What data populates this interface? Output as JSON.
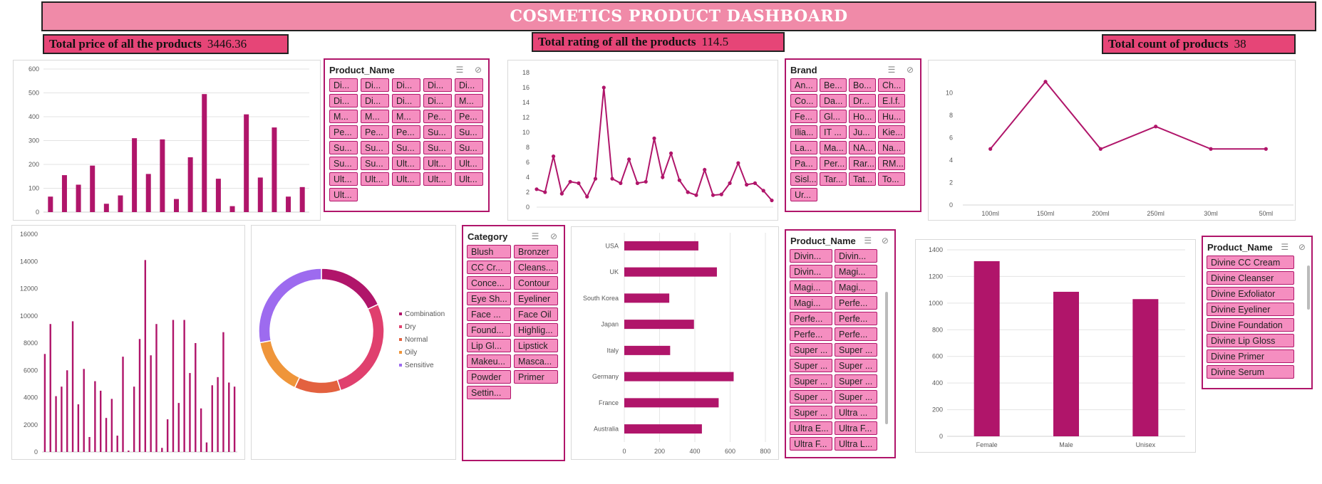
{
  "title": "COSMETICS PRODUCT DASHBOARD",
  "kpis": {
    "price": {
      "label": "Total price of all the products",
      "value": "3446.36"
    },
    "rating": {
      "label": "Total rating of all the products",
      "value": "114.5"
    },
    "count": {
      "label": "Total count of products",
      "value": "38"
    }
  },
  "colors": {
    "accent": "#b0156a",
    "title_bg": "#f08aa8",
    "kpi_bg": "#e64577",
    "slicer_btn": "#f58ec0"
  },
  "slicers": {
    "product_name_1": {
      "title": "Product_Name",
      "items": [
        "Di...",
        "Di...",
        "Di...",
        "Di...",
        "Di...",
        "Di...",
        "Di...",
        "Di...",
        "Di...",
        "M...",
        "M...",
        "M...",
        "M...",
        "Pe...",
        "Pe...",
        "Pe...",
        "Pe...",
        "Pe...",
        "Su...",
        "Su...",
        "Su...",
        "Su...",
        "Su...",
        "Su...",
        "Su...",
        "Su...",
        "Su...",
        "Ult...",
        "Ult...",
        "Ult...",
        "Ult...",
        "Ult...",
        "Ult...",
        "Ult...",
        "Ult...",
        "Ult..."
      ]
    },
    "brand": {
      "title": "Brand",
      "items": [
        "An...",
        "Be...",
        "Bo...",
        "Ch...",
        "Co...",
        "Da...",
        "Dr...",
        "E.l.f.",
        "Fe...",
        "Gl...",
        "Ho...",
        "Hu...",
        "Ilia...",
        "IT ...",
        "Ju...",
        "Kie...",
        "La...",
        "Ma...",
        "NA...",
        "Na...",
        "Pa...",
        "Per...",
        "Rar...",
        "RM...",
        "Sisl...",
        "Tar...",
        "Tat...",
        "To...",
        "Ur..."
      ]
    },
    "category": {
      "title": "Category",
      "items": [
        "Blush",
        "Bronzer",
        "CC Cr...",
        "Cleans...",
        "Conce...",
        "Contour",
        "Eye Sh...",
        "Eyeliner",
        "Face ...",
        "Face Oil",
        "Found...",
        "Highlig...",
        "Lip Gl...",
        "Lipstick",
        "Makeu...",
        "Masca...",
        "Powder",
        "Primer",
        "Settin..."
      ]
    },
    "product_name_2": {
      "title": "Product_Name",
      "items": [
        "Divin...",
        "Divin...",
        "Divin...",
        "Magi...",
        "Magi...",
        "Magi...",
        "Magi...",
        "Perfe...",
        "Perfe...",
        "Perfe...",
        "Perfe...",
        "Perfe...",
        "Super ...",
        "Super ...",
        "Super ...",
        "Super ...",
        "Super ...",
        "Super ...",
        "Super ...",
        "Super ...",
        "Super ...",
        "Ultra ...",
        "Ultra E...",
        "Ultra F...",
        "Ultra F...",
        "Ultra L..."
      ]
    },
    "product_name_3": {
      "title": "Product_Name",
      "items": [
        "Divine CC Cream",
        "Divine Cleanser",
        "Divine Exfoliator",
        "Divine Eyeliner",
        "Divine Foundation",
        "Divine Lip Gloss",
        "Divine Primer",
        "Divine Serum"
      ]
    }
  },
  "chart_data": [
    {
      "id": "price_bars",
      "type": "bar",
      "ylim": [
        0,
        600
      ],
      "yticks": [
        "0",
        "100",
        "200",
        "300",
        "400",
        "500",
        "600"
      ],
      "values": [
        65,
        155,
        115,
        195,
        35,
        70,
        310,
        160,
        305,
        55,
        230,
        495,
        140,
        25,
        410,
        145,
        355,
        65,
        105
      ]
    },
    {
      "id": "rating_line",
      "type": "line",
      "ylim": [
        0,
        18
      ],
      "yticks": [
        "0",
        "2",
        "4",
        "6",
        "8",
        "10",
        "12",
        "14",
        "16",
        "18"
      ],
      "values": [
        2.4,
        2.0,
        6.8,
        1.8,
        3.4,
        3.2,
        1.4,
        3.8,
        16.0,
        3.8,
        3.2,
        6.4,
        3.2,
        3.4,
        9.2,
        4.0,
        7.2,
        3.6,
        2.0,
        1.6,
        5.0,
        1.6,
        1.7,
        3.2,
        5.9,
        3.0,
        3.2,
        2.2,
        0.9
      ]
    },
    {
      "id": "count_by_size",
      "type": "line",
      "categories": [
        "100ml",
        "150ml",
        "200ml",
        "250ml",
        "30ml",
        "50ml"
      ],
      "values": [
        5,
        11,
        5,
        7,
        5,
        5
      ],
      "ylim": [
        0,
        12
      ],
      "yticks": [
        "0",
        "2",
        "4",
        "6",
        "8",
        "10"
      ]
    },
    {
      "id": "sum_bars",
      "type": "bar",
      "ylim": [
        0,
        16000
      ],
      "yticks": [
        "0",
        "2000",
        "4000",
        "6000",
        "8000",
        "10000",
        "12000",
        "14000",
        "16000"
      ],
      "values": [
        7200,
        9400,
        4100,
        4800,
        6000,
        9600,
        3500,
        6100,
        1100,
        5200,
        4500,
        2500,
        3900,
        1200,
        7000,
        100,
        4800,
        8300,
        14100,
        7100,
        9400,
        300,
        2400,
        9700,
        3600,
        9700,
        5800,
        8000,
        3200,
        700,
        4900,
        5500,
        8800,
        5100,
        4800
      ]
    },
    {
      "id": "skin_type_donut",
      "type": "pie",
      "categories": [
        "Combination",
        "Dry",
        "Normal",
        "Oily",
        "Sensitive"
      ],
      "values": [
        18,
        27,
        12,
        15,
        28
      ],
      "colors": [
        "#b0156a",
        "#e0406e",
        "#e3613f",
        "#ef953a",
        "#9d6bef"
      ]
    },
    {
      "id": "country_bars",
      "type": "bar",
      "orientation": "horizontal",
      "categories": [
        "USA",
        "UK",
        "South Korea",
        "Japan",
        "Italy",
        "Germany",
        "France",
        "Australia"
      ],
      "values": [
        420,
        525,
        255,
        395,
        260,
        620,
        535,
        440
      ],
      "xlim": [
        0,
        800
      ],
      "xticks": [
        "0",
        "200",
        "400",
        "600",
        "800"
      ]
    },
    {
      "id": "gender_bars",
      "type": "bar",
      "categories": [
        "Female",
        "Male",
        "Unisex"
      ],
      "values": [
        1315,
        1085,
        1030
      ],
      "ylim": [
        0,
        1400
      ],
      "yticks": [
        "0",
        "200",
        "400",
        "600",
        "800",
        "1000",
        "1200",
        "1400"
      ]
    }
  ]
}
